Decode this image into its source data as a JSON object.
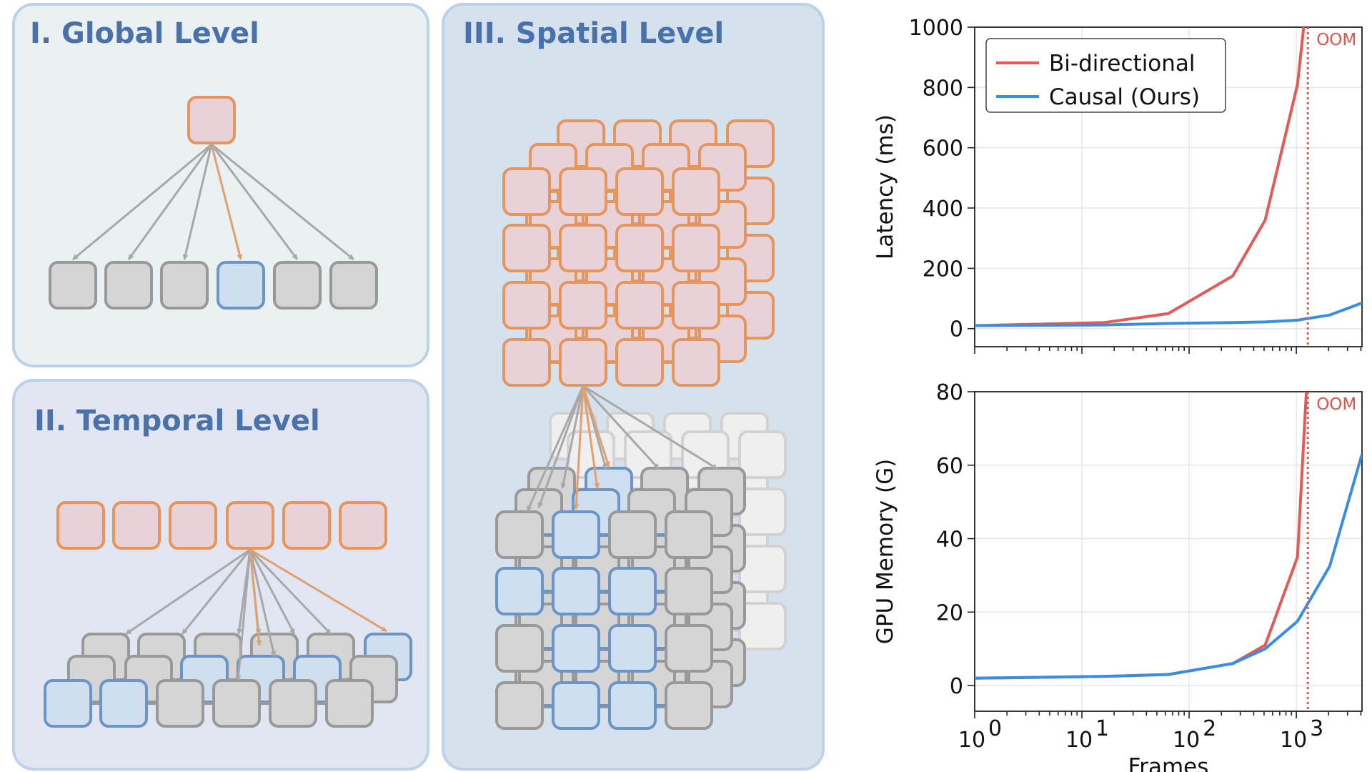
{
  "panels": [
    {
      "id": "global",
      "title": "I. Global Level"
    },
    {
      "id": "temporal",
      "title": "II. Temporal Level"
    },
    {
      "id": "spatial",
      "title": "III. Spatial Level"
    }
  ],
  "colors": {
    "orange_fill": "#e8d2d8",
    "orange_stroke": "#e4965c",
    "gray_fill": "#d5d5d5",
    "gray_stroke": "#999999",
    "blue_fill": "#cfdff0",
    "blue_stroke": "#6b95c6",
    "light_fill": "#efefef",
    "light_stroke": "#d2d2d2",
    "arrow_gray": "#a8a8a8",
    "arrow_orange": "#e0a070",
    "panel1_bg": "#ebf1f2",
    "panel2_bg": "#e2e5f2",
    "panel3_bg": "#d5e1ed",
    "panel_border": "#bcd2ea",
    "bidirectional": "#e45a55",
    "causal": "#3a8ee2",
    "oom": "#e0534f"
  },
  "chart_data": [
    {
      "type": "line",
      "xscale": "log",
      "xlim": [
        1,
        4096
      ],
      "ylim": [
        -60,
        1000
      ],
      "ylabel": "Latency (ms)",
      "yticks": [
        "0",
        "200",
        "400",
        "600",
        "800",
        "1000"
      ],
      "legend": {
        "placement": "top-left"
      },
      "grid": true,
      "oom": {
        "x": 1280,
        "label": "OOM"
      },
      "series": [
        {
          "name": "Bi-directional",
          "color": "#e45a55",
          "x": [
            1,
            16,
            64,
            256,
            512,
            1024,
            1170
          ],
          "y": [
            10,
            20,
            50,
            175,
            360,
            810,
            1000
          ]
        },
        {
          "name": "Causal (Ours)",
          "color": "#3a8ee2",
          "x": [
            1,
            16,
            64,
            256,
            512,
            1024,
            2048,
            4096
          ],
          "y": [
            10,
            12,
            17,
            20,
            22,
            28,
            45,
            85
          ]
        }
      ]
    },
    {
      "type": "line",
      "xscale": "log",
      "xlim": [
        1,
        4096
      ],
      "ylim": [
        -7,
        80
      ],
      "xlabel": "Frames",
      "ylabel": "GPU Memory (G)",
      "yticks": [
        "0",
        "20",
        "40",
        "60",
        "80"
      ],
      "xticks": [
        {
          "base": "10",
          "exp": "0"
        },
        {
          "base": "10",
          "exp": "1"
        },
        {
          "base": "10",
          "exp": "2"
        },
        {
          "base": "10",
          "exp": "3"
        }
      ],
      "grid": true,
      "oom": {
        "x": 1280,
        "label": "OOM"
      },
      "series": [
        {
          "name": "Bi-directional",
          "color": "#e45a55",
          "x": [
            1,
            16,
            64,
            256,
            512,
            1024,
            1240
          ],
          "y": [
            2,
            2.5,
            3,
            6,
            11,
            35,
            80
          ]
        },
        {
          "name": "Causal (Ours)",
          "color": "#3a8ee2",
          "x": [
            1,
            16,
            64,
            256,
            512,
            1024,
            2048,
            4096
          ],
          "y": [
            2,
            2.5,
            3,
            6,
            10,
            17.5,
            32.5,
            63
          ]
        }
      ]
    }
  ]
}
